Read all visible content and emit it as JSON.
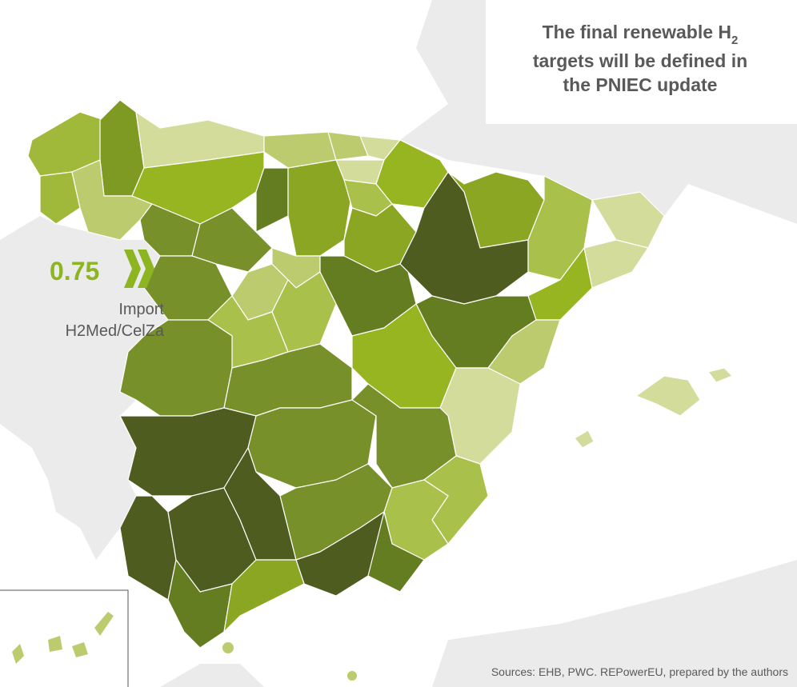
{
  "callout": {
    "line1": "The final renewable H",
    "line1_sub": "2",
    "line2": "targets will be defined in",
    "line3": "the PNIEC update"
  },
  "import": {
    "value": 0.75,
    "label_lines": [
      "Import",
      "H2Med/CelZa"
    ]
  },
  "source": "Sources: EHB, PWC. REPowerEU, prepared by the authors"
}
